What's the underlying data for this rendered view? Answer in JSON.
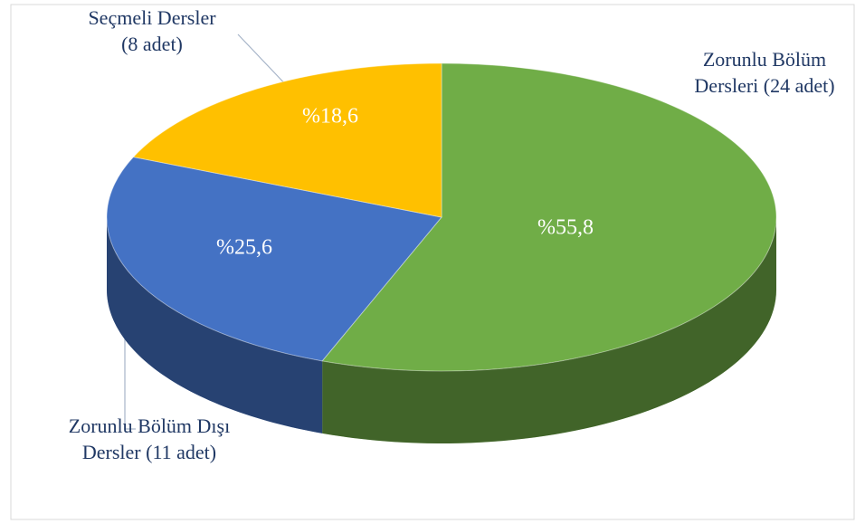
{
  "chart_data": {
    "type": "pie3d",
    "categories": [
      [
        "Zorunlu Bölüm",
        "Dersleri (24 adet)"
      ],
      [
        "Zorunlu Bölüm Dışı",
        "Dersler (11 adet)"
      ],
      [
        "Seçmeli Dersler",
        "(8 adet)"
      ]
    ],
    "values": [
      55.8,
      25.6,
      18.6
    ],
    "value_labels": [
      "%55,8",
      "%25,6",
      "%18,6"
    ],
    "colors": [
      "#70ad47",
      "#4472c4",
      "#ffc000"
    ]
  }
}
